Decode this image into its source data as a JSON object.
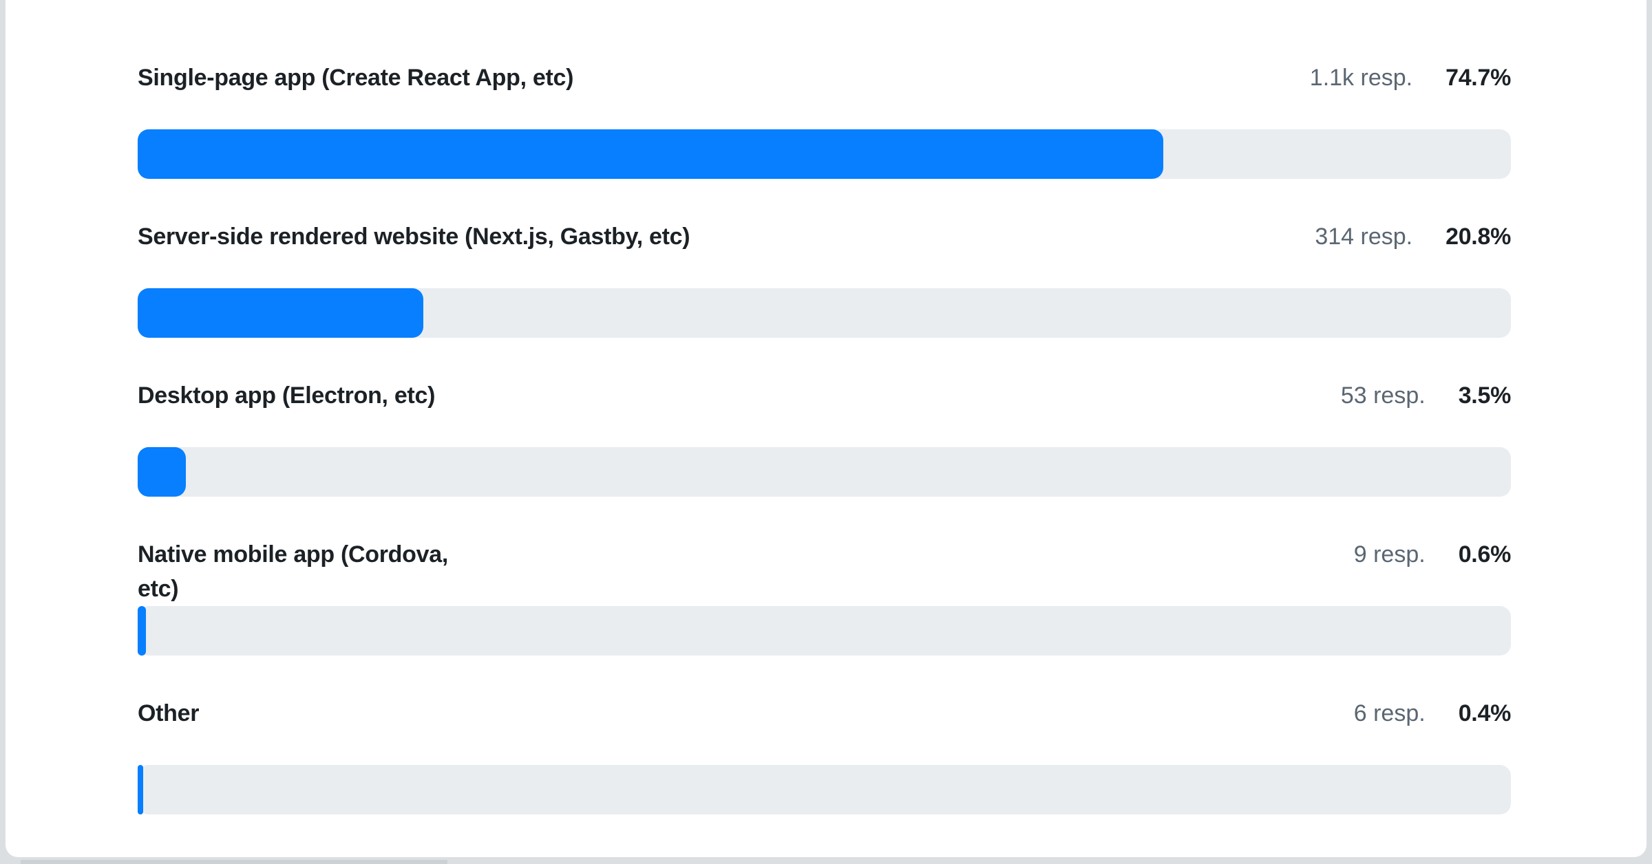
{
  "page": {
    "background_color": "#dcdfe2",
    "card_color": "#ffffff"
  },
  "chart": {
    "bar_color": "#077fff",
    "track_color": "#e9edf0",
    "label_color": "#1c2126",
    "responses_color": "#5a6672",
    "rows": [
      {
        "label": "Single-page app (Create React App, etc)",
        "responses": "1.1k resp.",
        "percent": "74.7%",
        "percent_value": 74.7
      },
      {
        "label": "Server-side rendered website (Next.js, Gastby, etc)",
        "responses": "314 resp.",
        "percent": "20.8%",
        "percent_value": 20.8
      },
      {
        "label": "Desktop app (Electron, etc)",
        "responses": "53 resp.",
        "percent": "3.5%",
        "percent_value": 3.5
      },
      {
        "label": "Native mobile app (Cordova,\netc)",
        "responses": "9 resp.",
        "percent": "0.6%",
        "percent_value": 0.6
      },
      {
        "label": "Other",
        "responses": "6 resp.",
        "percent": "0.4%",
        "percent_value": 0.4
      }
    ]
  },
  "chart_data": {
    "type": "bar",
    "orientation": "horizontal",
    "categories": [
      "Single-page app (Create React App, etc)",
      "Server-side rendered website (Next.js, Gastby, etc)",
      "Desktop app (Electron, etc)",
      "Native mobile app (Cordova, etc)",
      "Other"
    ],
    "values": [
      74.7,
      20.8,
      3.5,
      0.6,
      0.4
    ],
    "value_unit": "%",
    "response_counts_labels": [
      "1.1k resp.",
      "314 resp.",
      "53 resp.",
      "9 resp.",
      "6 resp."
    ],
    "response_counts_values": [
      1100,
      314,
      53,
      9,
      6
    ],
    "title": "",
    "xlabel": "",
    "ylabel": "",
    "xlim": [
      0,
      100
    ],
    "grid": false,
    "legend": false
  }
}
